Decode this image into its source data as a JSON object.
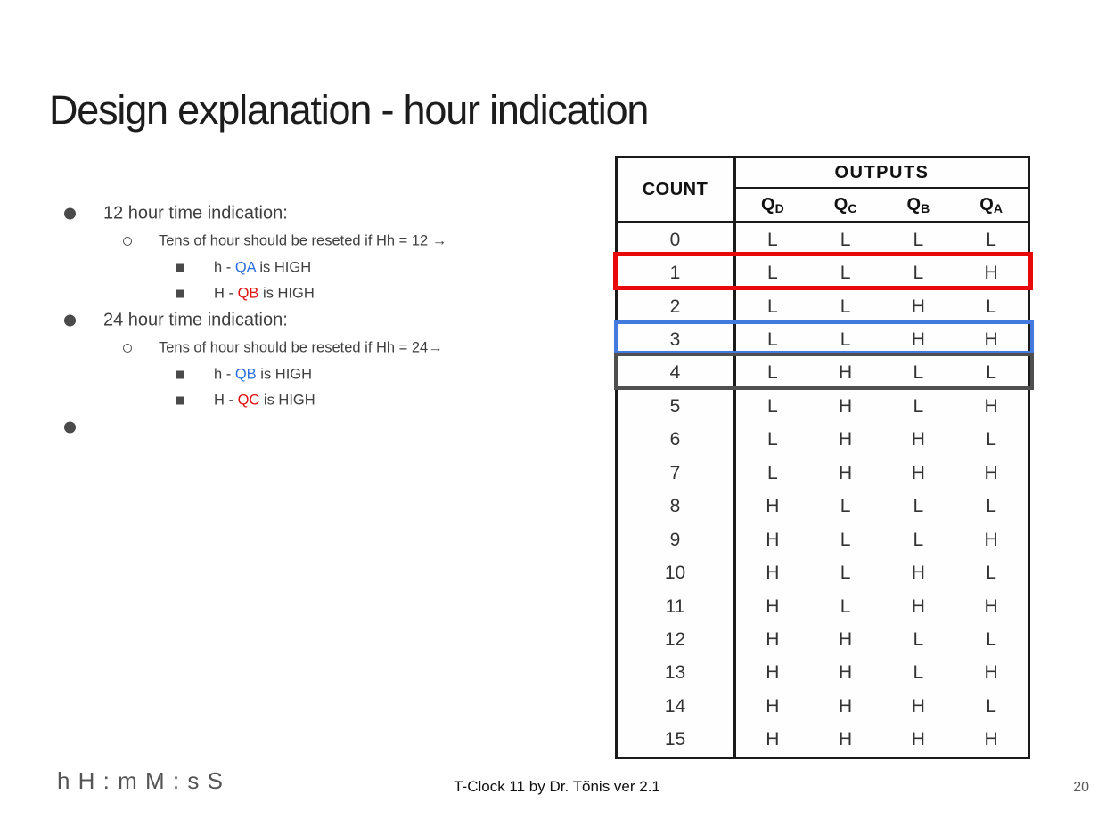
{
  "slide": {
    "title": "Design explanation - hour indication",
    "footer_left": "h H : m M : s S",
    "footer_center": "T-Clock 11 by Dr. Tõnis ver 2.1",
    "page_number": "20"
  },
  "colors": {
    "accent_blue": "#2b6fdd",
    "accent_red": "#e01111",
    "body_text_gray": "#3f3f3f"
  },
  "bullets": {
    "b1": {
      "text": "12 hour time indication:"
    },
    "b1_sub": {
      "text": "Tens of hour should be reseted if Hh = 12 →"
    },
    "b1_item1": {
      "pre": "h - ",
      "q": "QA",
      "post": " is HIGH"
    },
    "b1_item2": {
      "pre": "H - ",
      "q": "QB",
      "post": " is HIGH"
    },
    "b2": {
      "text": "24 hour time indication:"
    },
    "b2_sub": {
      "text": "Tens of hour should be reseted if Hh = 24→"
    },
    "b2_item1": {
      "pre": "h - ",
      "q": "QB",
      "post": " is HIGH"
    },
    "b2_item2": {
      "pre": "H - ",
      "q": "QC",
      "post": " is HIGH"
    },
    "b3": {
      "text": ""
    }
  },
  "truth_table": {
    "count_header": "COUNT",
    "outputs_header": "OUTPUTS",
    "output_columns": [
      {
        "base": "Q",
        "sub": "D"
      },
      {
        "base": "Q",
        "sub": "C"
      },
      {
        "base": "Q",
        "sub": "B"
      },
      {
        "base": "Q",
        "sub": "A"
      }
    ],
    "rows": [
      {
        "count": "0",
        "values": [
          "L",
          "L",
          "L",
          "L"
        ],
        "highlight": null
      },
      {
        "count": "1",
        "values": [
          "L",
          "L",
          "L",
          "H"
        ],
        "highlight": "red"
      },
      {
        "count": "2",
        "values": [
          "L",
          "L",
          "H",
          "L"
        ],
        "highlight": null
      },
      {
        "count": "3",
        "values": [
          "L",
          "L",
          "H",
          "H"
        ],
        "highlight": "blue"
      },
      {
        "count": "4",
        "values": [
          "L",
          "H",
          "L",
          "L"
        ],
        "highlight": "gray"
      },
      {
        "count": "5",
        "values": [
          "L",
          "H",
          "L",
          "H"
        ],
        "highlight": null
      },
      {
        "count": "6",
        "values": [
          "L",
          "H",
          "H",
          "L"
        ],
        "highlight": null
      },
      {
        "count": "7",
        "values": [
          "L",
          "H",
          "H",
          "H"
        ],
        "highlight": null
      },
      {
        "count": "8",
        "values": [
          "H",
          "L",
          "L",
          "L"
        ],
        "highlight": null
      },
      {
        "count": "9",
        "values": [
          "H",
          "L",
          "L",
          "H"
        ],
        "highlight": null
      },
      {
        "count": "10",
        "values": [
          "H",
          "L",
          "H",
          "L"
        ],
        "highlight": null
      },
      {
        "count": "11",
        "values": [
          "H",
          "L",
          "H",
          "H"
        ],
        "highlight": null
      },
      {
        "count": "12",
        "values": [
          "H",
          "H",
          "L",
          "L"
        ],
        "highlight": null
      },
      {
        "count": "13",
        "values": [
          "H",
          "H",
          "L",
          "H"
        ],
        "highlight": null
      },
      {
        "count": "14",
        "values": [
          "H",
          "H",
          "H",
          "L"
        ],
        "highlight": null
      },
      {
        "count": "15",
        "values": [
          "H",
          "H",
          "H",
          "H"
        ],
        "highlight": null
      }
    ],
    "highlights": {
      "red": {
        "row": "1",
        "color": "#e90808"
      },
      "blue": {
        "row": "3",
        "color": "#4279dd"
      },
      "gray": {
        "row": "4",
        "color": "#4f4f4f"
      }
    }
  }
}
